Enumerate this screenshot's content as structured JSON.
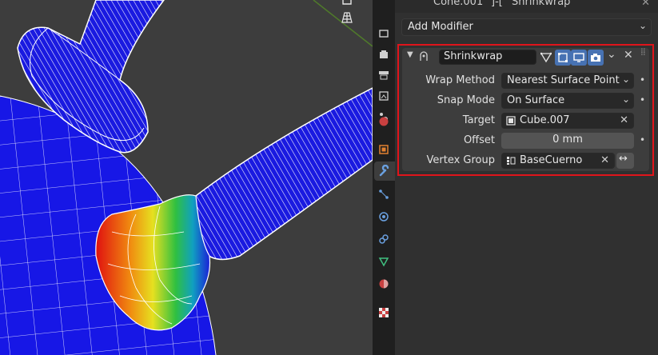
{
  "header": {
    "object_name": "Cone.001",
    "separator": "]-[",
    "modifier_name": "Shrinkwrap"
  },
  "add_modifier": {
    "label": "Add Modifier"
  },
  "modifier": {
    "name": "Shrinkwrap",
    "rows": {
      "wrap_method": {
        "label": "Wrap Method",
        "value": "Nearest Surface Point"
      },
      "snap_mode": {
        "label": "Snap Mode",
        "value": "On Surface"
      },
      "target": {
        "label": "Target",
        "value": "Cube.007"
      },
      "offset": {
        "label": "Offset",
        "value": "0 mm"
      },
      "vertex_group": {
        "label": "Vertex Group",
        "value": "BaseCuerno"
      }
    }
  },
  "tabs": [
    "tool-icon",
    "render-icon",
    "output-icon",
    "view-layer-icon",
    "scene-icon",
    "world-icon",
    "object-icon",
    "modifier-icon",
    "particles-icon",
    "physics-icon",
    "constraints-icon",
    "data-icon",
    "material-icon",
    "texture-icon"
  ],
  "colors": {
    "accent": "#4772b3",
    "highlight_border": "#e0141b",
    "panel_bg": "#3d3d3d"
  }
}
